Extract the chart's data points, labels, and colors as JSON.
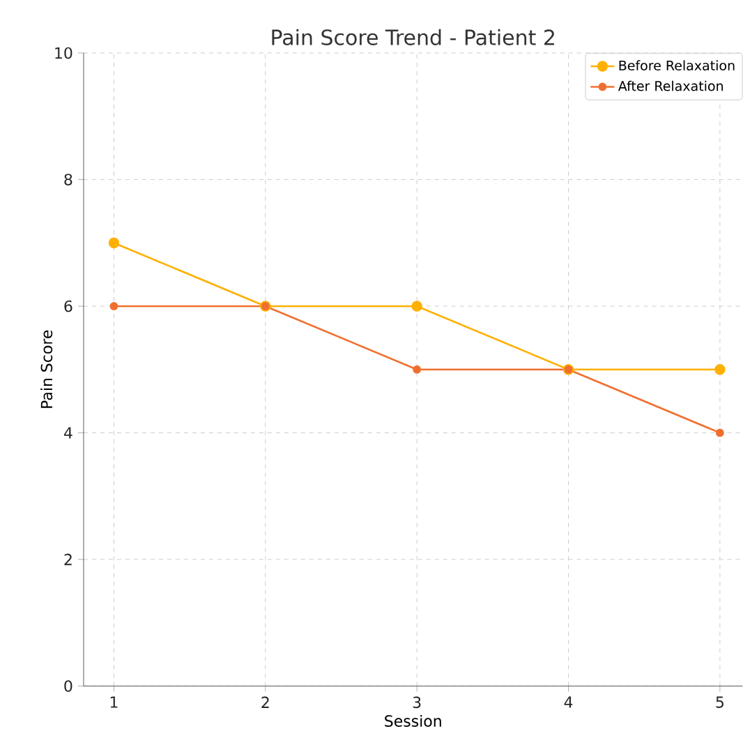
{
  "chart_data": {
    "type": "line",
    "title": "Pain Score Trend - Patient 2",
    "xlabel": "Session",
    "ylabel": "Pain Score",
    "x": [
      1,
      2,
      3,
      4,
      5
    ],
    "series": [
      {
        "name": "Before Relaxation",
        "color": "#ffb000",
        "values": [
          7,
          6,
          6,
          5,
          5
        ]
      },
      {
        "name": "After Relaxation",
        "color": "#f07030",
        "values": [
          6,
          6,
          5,
          5,
          4
        ]
      }
    ],
    "xlim": [
      0.8,
      5.15
    ],
    "ylim": [
      0,
      10
    ],
    "xticks": [
      1,
      2,
      3,
      4,
      5
    ],
    "yticks": [
      0,
      2,
      4,
      6,
      8,
      10
    ],
    "grid": true,
    "legend": "top right",
    "marker": "circle",
    "line_style": "solid"
  }
}
